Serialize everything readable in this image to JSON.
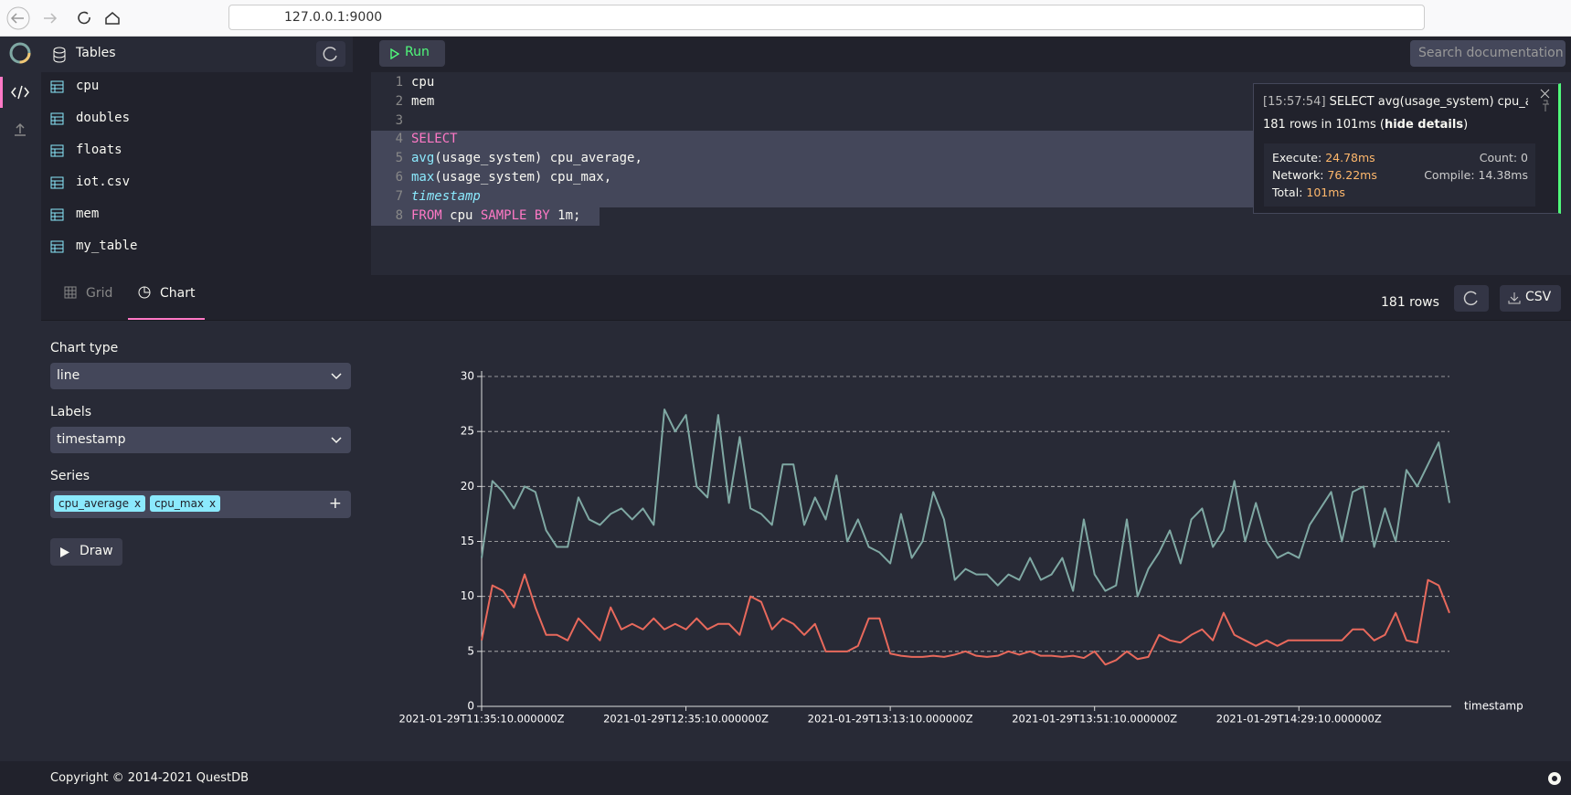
{
  "browser": {
    "url": "127.0.0.1:9000"
  },
  "sidebar": {
    "title": "Tables",
    "tables": [
      "cpu",
      "doubles",
      "floats",
      "iot.csv",
      "mem",
      "my_table"
    ]
  },
  "toolbar": {
    "run": "Run",
    "search_placeholder": "Search documentation"
  },
  "editor": {
    "line_numbers": [
      "1",
      "2",
      "3",
      "4",
      "5",
      "6",
      "7",
      "8"
    ],
    "lines": [
      [
        "cpu"
      ],
      [
        "mem"
      ],
      [],
      [
        "SELECT"
      ],
      [
        "avg",
        "(usage_system) cpu_average,"
      ],
      [
        "max",
        "(usage_system) cpu_max,"
      ],
      [
        "timestamp"
      ],
      [
        "FROM",
        " cpu ",
        "SAMPLE BY",
        " 1m;"
      ]
    ]
  },
  "notification": {
    "time": "[15:57:54]",
    "query": "SELECT avg(usage_system) cpu_aver...",
    "summary": "181 rows in 101ms (",
    "toggle": "hide details",
    "summary_end": ")",
    "execute_label": "Execute:",
    "execute": "24.78ms",
    "network_label": "Network:",
    "network": "76.22ms",
    "total_label": "Total:",
    "total": "101ms",
    "count": "Count: 0",
    "compile": "Compile: 14.38ms"
  },
  "results": {
    "tabs": [
      "Grid",
      "Chart"
    ],
    "row_count": "181 rows",
    "csv": "CSV"
  },
  "controls": {
    "chart_type_label": "Chart type",
    "labels_label": "Labels",
    "series_label": "Series",
    "remove": "x",
    "add": "+",
    "draw": "Draw"
  },
  "footer": {
    "copyright": "Copyright © 2014-2021 QuestDB"
  },
  "chart_data": {
    "type": "line",
    "xlabel": "timestamp",
    "categories": [
      "2021-01-29T11:35:10.000000Z",
      null,
      null,
      null,
      null,
      null,
      null,
      null,
      null,
      null,
      null,
      null,
      null,
      null,
      null,
      null,
      null,
      null,
      null,
      "2021-01-29T12:35:10.000000Z",
      null,
      null,
      null,
      null,
      null,
      null,
      null,
      null,
      null,
      null,
      null,
      null,
      null,
      null,
      null,
      null,
      null,
      null,
      "2021-01-29T13:13:10.000000Z",
      null,
      null,
      null,
      null,
      null,
      null,
      null,
      null,
      null,
      null,
      null,
      null,
      null,
      null,
      null,
      null,
      null,
      null,
      "2021-01-29T13:51:10.000000Z",
      null,
      null,
      null,
      null,
      null,
      null,
      null,
      null,
      null,
      null,
      null,
      null,
      null,
      null,
      null,
      null,
      null,
      null,
      "2021-01-29T14:29:10.000000Z",
      null,
      null,
      null,
      null,
      null,
      null,
      null,
      null,
      null,
      null,
      null,
      null,
      null,
      null
    ],
    "series": [
      {
        "name": "cpu_average",
        "color": "#e8695c",
        "values": [
          6,
          11,
          10.5,
          9,
          12,
          9,
          6.5,
          6.5,
          6,
          8,
          7,
          6,
          9,
          7,
          7.5,
          7,
          8,
          7,
          7.5,
          7,
          8,
          7,
          7.5,
          7.5,
          6.5,
          10,
          9.5,
          7,
          8,
          7.5,
          6.5,
          7.5,
          5,
          5,
          5,
          5.5,
          8,
          8,
          4.8,
          4.6,
          4.5,
          4.5,
          4.6,
          4.5,
          4.7,
          5,
          4.6,
          4.5,
          4.6,
          5,
          4.7,
          5,
          4.6,
          4.6,
          4.5,
          4.6,
          4.4,
          5,
          3.8,
          4.2,
          5,
          4.3,
          4.5,
          6.5,
          6,
          5.8,
          6.5,
          7,
          6,
          8.5,
          6.5,
          6,
          5.5,
          6,
          5.5,
          6,
          6,
          6,
          6,
          6,
          6,
          7,
          7,
          6,
          6.5,
          8.5,
          6,
          5.8,
          11.5,
          11,
          8.5
        ]
      },
      {
        "name": "cpu_max",
        "color": "#7fa8a3",
        "values": [
          13.5,
          20.5,
          19.5,
          18,
          20,
          19.5,
          16,
          14.5,
          14.5,
          19,
          17,
          16.5,
          17.5,
          18,
          17,
          18,
          16.5,
          27,
          25,
          26.5,
          20,
          19,
          26.5,
          18.5,
          24.5,
          18,
          17.5,
          16.5,
          22,
          22,
          16.5,
          19,
          17,
          21,
          15,
          17,
          14.5,
          14,
          13,
          17.5,
          13.5,
          15,
          19.5,
          17,
          11.5,
          12.5,
          12,
          12,
          11,
          12,
          11.5,
          13.5,
          11.5,
          12,
          13.5,
          10.5,
          17,
          12,
          10.5,
          11,
          17,
          10,
          12.5,
          14,
          16,
          13,
          17,
          18,
          14.5,
          16,
          20.5,
          15,
          18.5,
          15,
          13.5,
          14,
          13.5,
          16.5,
          18,
          19.5,
          15,
          19.5,
          20,
          14.5,
          18,
          15,
          21.5,
          20,
          22,
          24,
          18.5
        ]
      }
    ],
    "ylim": [
      0,
      30
    ],
    "yticks": [
      0,
      5,
      10,
      15,
      20,
      25,
      30
    ],
    "grid": true
  }
}
